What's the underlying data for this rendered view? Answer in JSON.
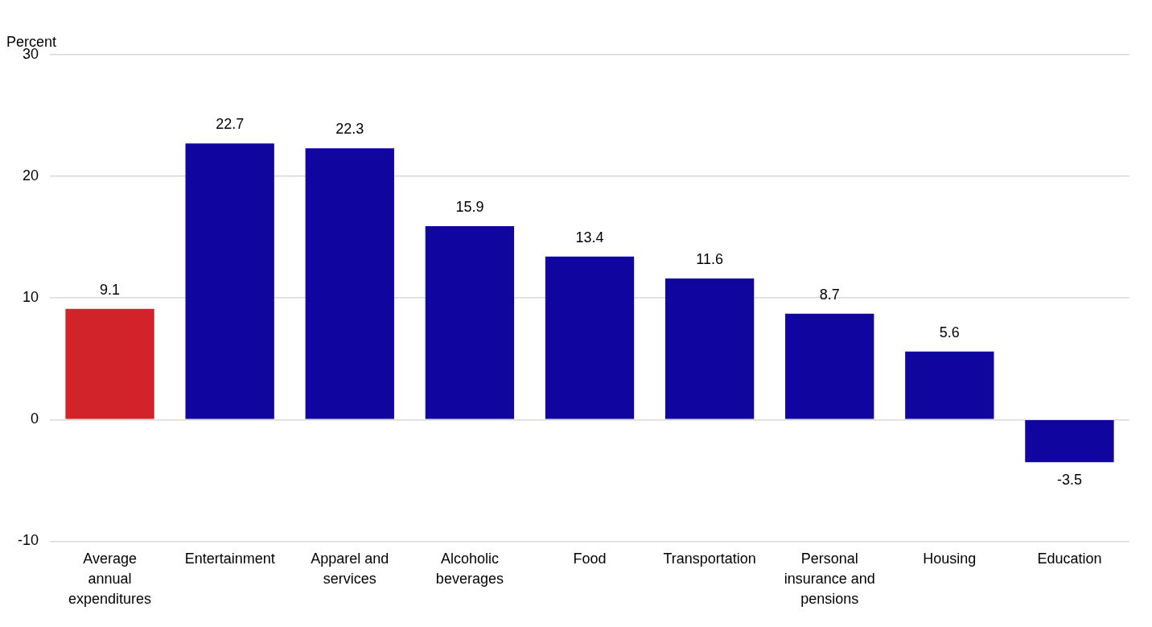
{
  "chart_data": {
    "type": "bar",
    "ylabel": "Percent",
    "categories": [
      "Average annual expenditures",
      "Entertainment",
      "Apparel and services",
      "Alcoholic beverages",
      "Food",
      "Transportation",
      "Personal insurance and pensions",
      "Housing",
      "Education"
    ],
    "values": [
      9.1,
      22.7,
      22.3,
      15.9,
      13.4,
      11.6,
      8.7,
      5.6,
      -3.5
    ],
    "colors": [
      "#d2232a",
      "#10069f",
      "#10069f",
      "#10069f",
      "#10069f",
      "#10069f",
      "#10069f",
      "#10069f",
      "#10069f"
    ],
    "ylim": [
      -10,
      30
    ],
    "yticks": [
      -10,
      0,
      10,
      20,
      30
    ],
    "grid": "y",
    "legend": false,
    "data_labels": true
  }
}
